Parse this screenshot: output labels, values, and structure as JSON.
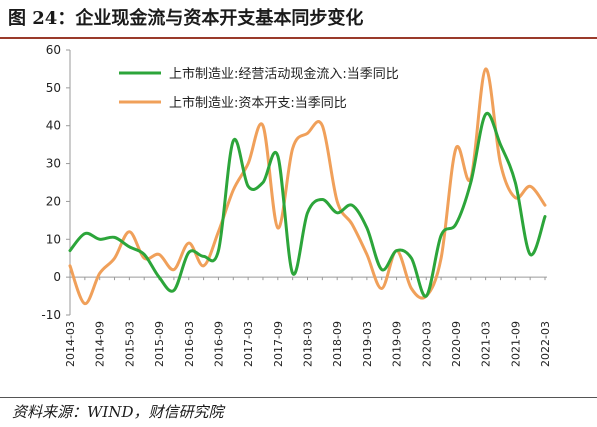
{
  "figure": {
    "title": "图 24：企业现金流与资本开支基本同步变化",
    "source": "资料来源：WIND，财信研究院"
  },
  "colors": {
    "green": "#2ca53a",
    "orange": "#f0a05a",
    "axis": "#9a9a9a",
    "text": "#222222"
  },
  "chart_data": {
    "type": "line",
    "title": "",
    "xlabel": "",
    "ylabel": "",
    "ylim": [
      -10,
      60
    ],
    "yticks": [
      -10,
      0,
      10,
      20,
      30,
      40,
      50,
      60
    ],
    "grid": false,
    "legend_position": "top-center",
    "x_start": "2014-03",
    "x_labels": [
      "2014-03",
      "2014-09",
      "2015-03",
      "2015-09",
      "2016-03",
      "2016-09",
      "2017-03",
      "2017-09",
      "2018-03",
      "2018-09",
      "2019-03",
      "2019-09",
      "2020-03",
      "2020-09",
      "2021-03",
      "2021-09",
      "2022-03"
    ],
    "series": [
      {
        "name": "上市制造业:经营活动现金流入:当季同比",
        "color": "#2ca53a",
        "values": [
          7,
          11.5,
          10,
          10.5,
          8,
          6,
          0,
          -3.5,
          6.5,
          5.5,
          7,
          36,
          24,
          25,
          32,
          1,
          17,
          20.5,
          17,
          19,
          13,
          2,
          7,
          5,
          -5,
          11,
          14,
          25,
          43,
          35,
          25,
          6,
          16
        ]
      },
      {
        "name": "上市制造业:资本开支:当季同比",
        "color": "#f0a05a",
        "values": [
          3,
          -7,
          1,
          5,
          12,
          5,
          6,
          2,
          9,
          3,
          12,
          23,
          30,
          40,
          13,
          34,
          38,
          40,
          20,
          14,
          6,
          -3,
          7,
          -3,
          -5,
          5,
          34,
          26,
          55,
          30,
          21,
          24,
          19
        ]
      }
    ]
  }
}
